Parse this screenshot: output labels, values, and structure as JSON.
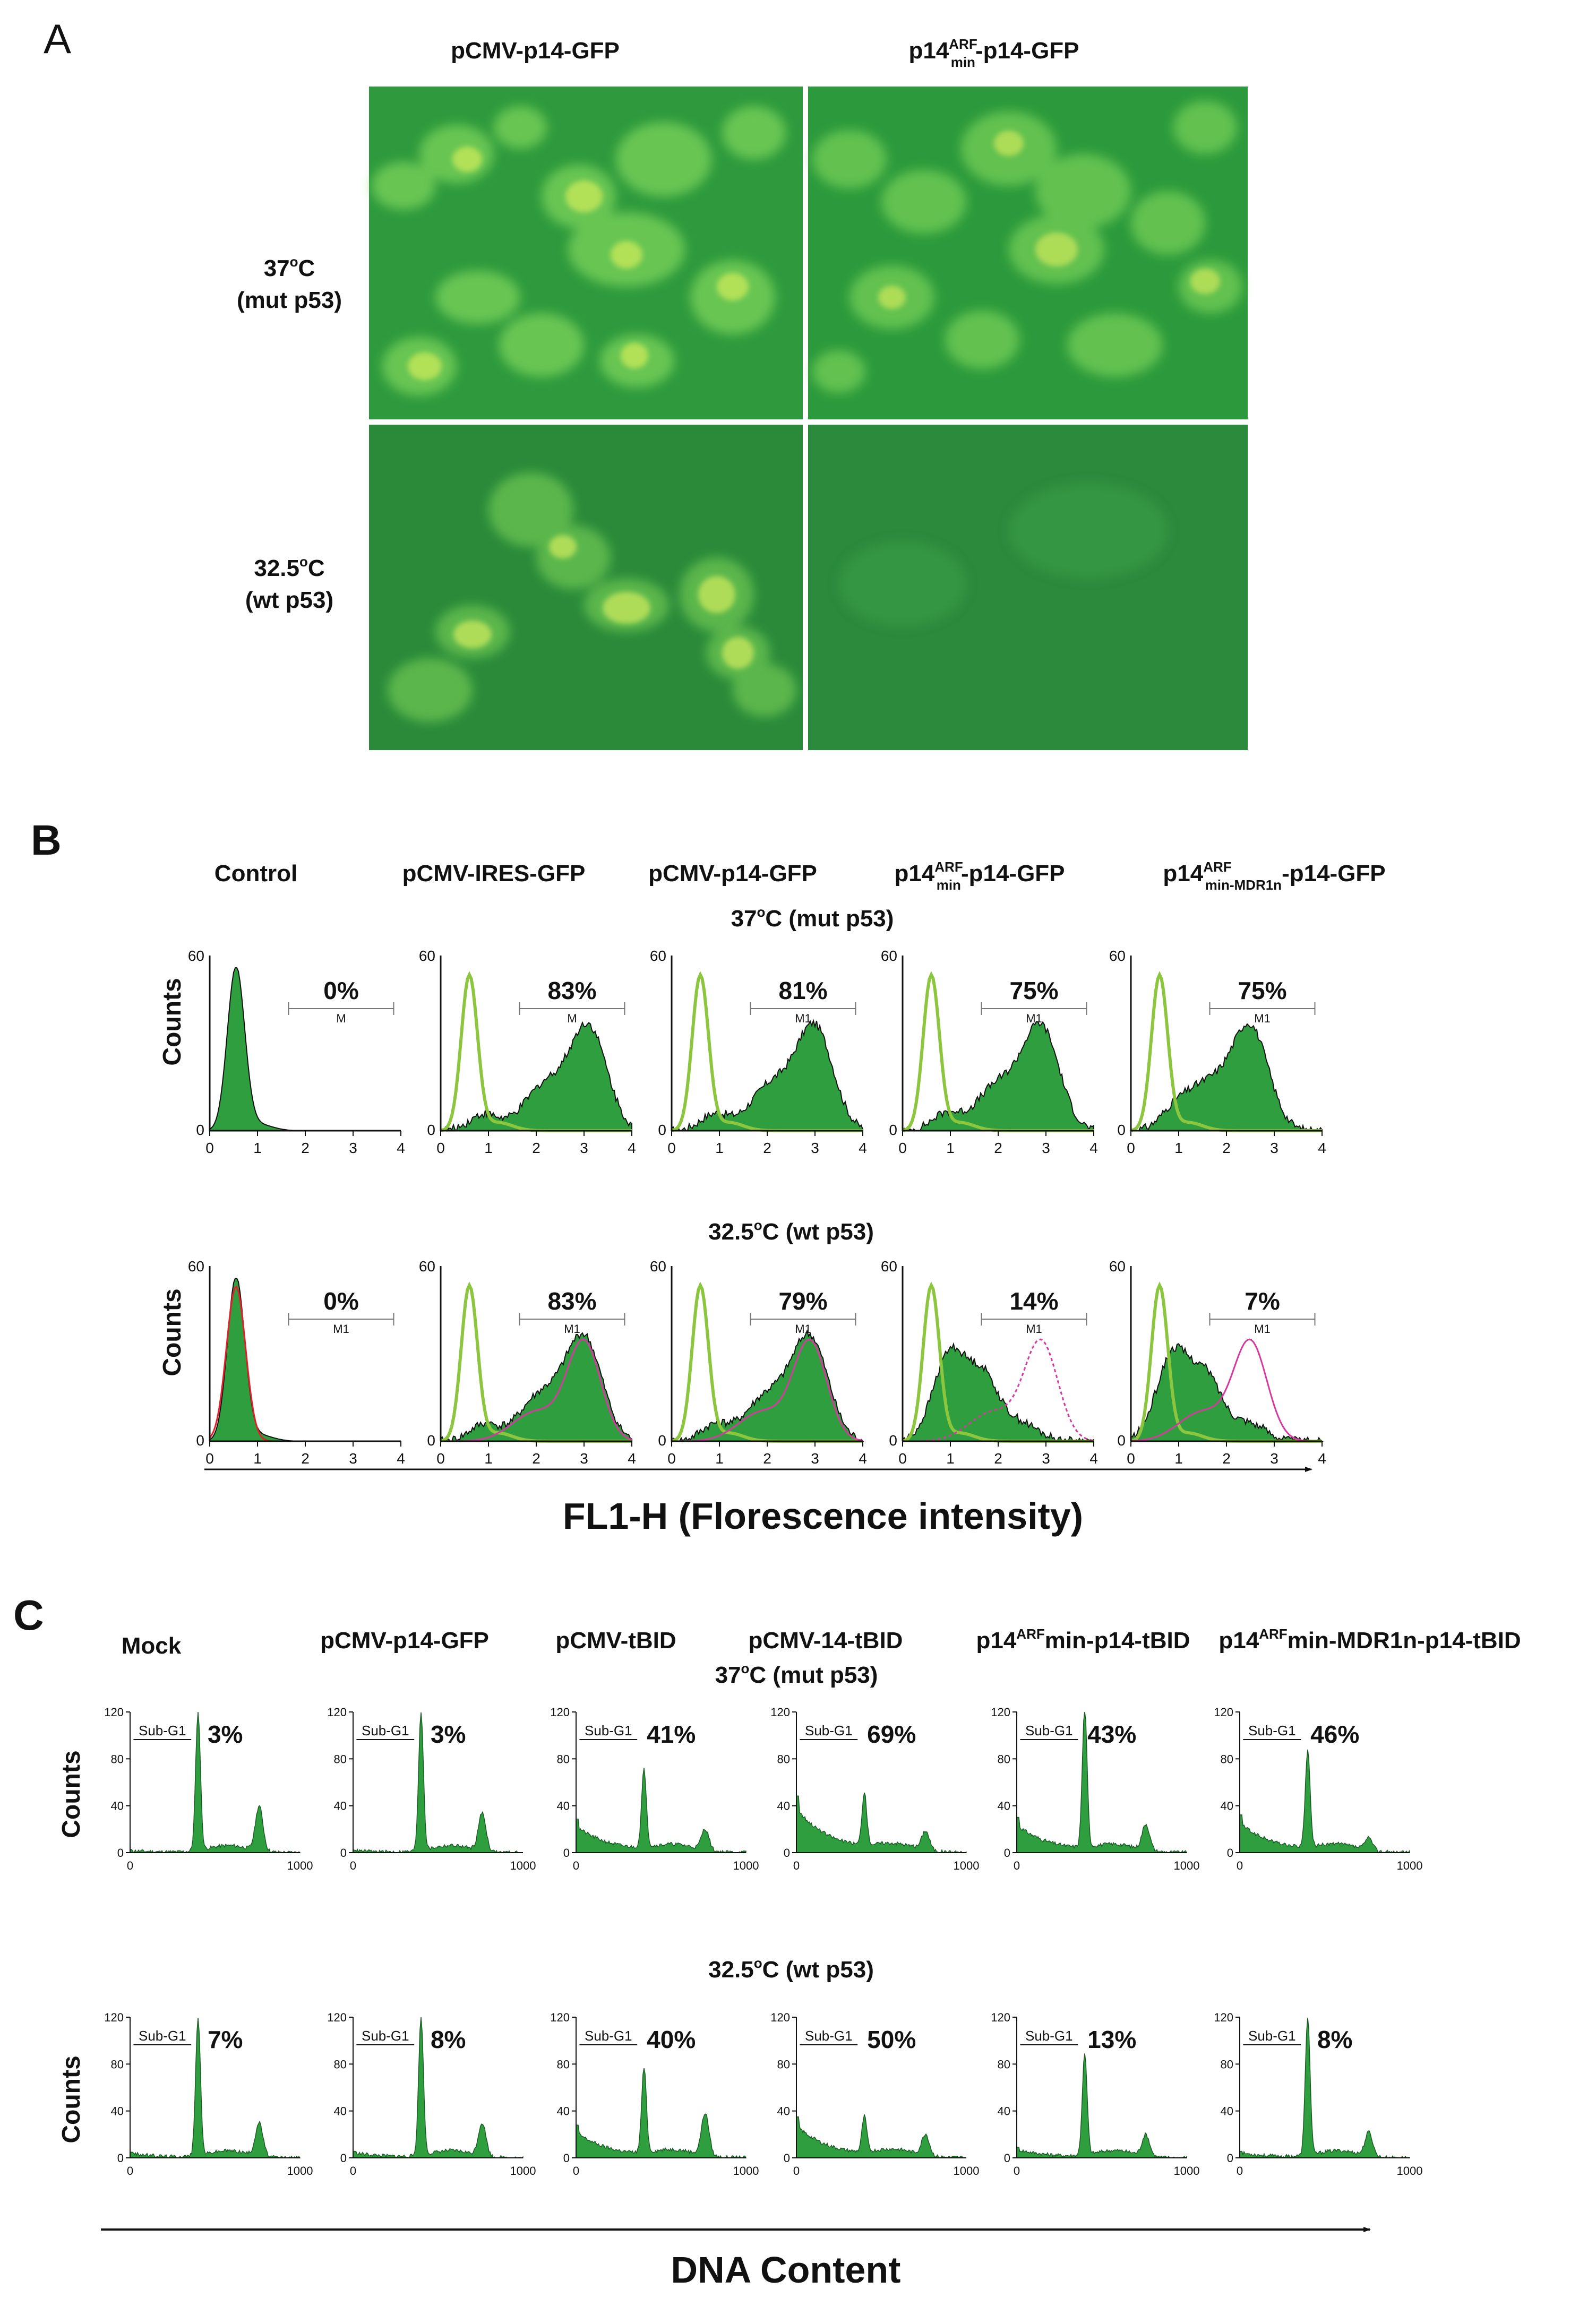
{
  "panel_a": {
    "letter": "A",
    "columns": [
      {
        "base": "pCMV-p14-GFP",
        "sup": "",
        "sub": "",
        "rest": ""
      },
      {
        "base": "p14",
        "sup": "ARF",
        "sub": "min",
        "rest": "-p14-GFP"
      }
    ],
    "rows": [
      {
        "line1_pre": "37",
        "line1_sup": "o",
        "line1_post": "C",
        "line2": "(mut p53)"
      },
      {
        "line1_pre": "32.5",
        "line1_sup": "o",
        "line1_post": "C",
        "line2": "(wt p53)"
      }
    ],
    "image_descriptions": [
      "",
      "",
      "",
      ""
    ]
  },
  "panel_b": {
    "letter": "B",
    "headers": [
      {
        "base": "Control",
        "sup": "",
        "sub": "",
        "rest": ""
      },
      {
        "base": "pCMV-IRES-GFP",
        "sup": "",
        "sub": "",
        "rest": ""
      },
      {
        "base": "pCMV-p14-GFP",
        "sup": "",
        "sub": "",
        "rest": ""
      },
      {
        "base": "p14",
        "sup": "ARF",
        "sub": "min",
        "rest": "-p14-GFP"
      },
      {
        "base": "p14",
        "sup": "ARF",
        "sub": "min-MDR1n",
        "rest": "-p14-GFP"
      }
    ],
    "condition_labels": [
      {
        "pre": "37",
        "sup": "o",
        "post": "C (mut p53)"
      },
      {
        "pre": "32.5",
        "sup": "o",
        "post": "C (wt p53)"
      }
    ],
    "ylabel": "Counts",
    "xlabel": "FL1-H (Florescence intensity)",
    "y_ticks": [
      "0",
      "60"
    ],
    "x_ticks": [
      "0",
      "1",
      "2",
      "3",
      "4"
    ]
  },
  "panel_c": {
    "letter": "C",
    "headers": [
      {
        "base": "Mock",
        "sup": "",
        "rest": ""
      },
      {
        "base": "pCMV-p14-GFP",
        "sup": "",
        "rest": ""
      },
      {
        "base": "pCMV-tBID",
        "sup": "",
        "rest": ""
      },
      {
        "base": "pCMV-14-tBID",
        "sup": "",
        "rest": ""
      },
      {
        "base": "p14",
        "sup": "ARF",
        "rest": "min-p14-tBID"
      },
      {
        "base": "p14",
        "sup": "ARF",
        "rest": "min-MDR1n-p14-tBID"
      }
    ],
    "condition_labels": [
      {
        "pre": "37",
        "sup": "o",
        "post": "C (mut p53)"
      },
      {
        "pre": "32.5",
        "sup": "o",
        "post": "C (wt p53)"
      }
    ],
    "ylabel": "Counts",
    "xlabel": "DNA Content",
    "gate_label": "Sub-G1",
    "y_ticks": [
      "0",
      "40",
      "80",
      "120"
    ],
    "x_ticks": [
      "0",
      "1000"
    ]
  },
  "chart_data": [
    {
      "type": "area",
      "panel": "B",
      "x_label": "FL1-H (Florescence intensity)",
      "y_label": "Counts",
      "xlim": [
        0,
        4
      ],
      "ylim": [
        0,
        60
      ],
      "rows": [
        {
          "condition": "37°C (mut p53)",
          "gate": "M1",
          "plots": [
            {
              "header": "Control",
              "percent": "0%",
              "gate_label": "M",
              "profile": "control",
              "overlay": "none"
            },
            {
              "header": "pCMV-IRES-GFP",
              "percent": "83%",
              "gate_label": "M",
              "profile": "high",
              "peak_x": 3.1,
              "overlay": "none"
            },
            {
              "header": "pCMV-p14-GFP",
              "percent": "81%",
              "gate_label": "M1",
              "profile": "high",
              "peak_x": 3.0,
              "overlay": "none"
            },
            {
              "header": "p14ARFmin-p14-GFP",
              "percent": "75%",
              "gate_label": "M1",
              "profile": "high",
              "peak_x": 2.9,
              "overlay": "none"
            },
            {
              "header": "p14ARFmin-MDR1n-p14-GFP",
              "percent": "75%",
              "gate_label": "M1",
              "profile": "high",
              "peak_x": 2.5,
              "overlay": "none"
            }
          ]
        },
        {
          "condition": "32.5°C (wt p53)",
          "gate": "M1",
          "plots": [
            {
              "header": "Control",
              "percent": "0%",
              "gate_label": "M1",
              "profile": "control",
              "overlay": "red"
            },
            {
              "header": "pCMV-IRES-GFP",
              "percent": "83%",
              "gate_label": "M1",
              "profile": "high",
              "peak_x": 3.0,
              "overlay": "pink"
            },
            {
              "header": "pCMV-p14-GFP",
              "percent": "79%",
              "gate_label": "M1",
              "profile": "high",
              "peak_x": 2.9,
              "overlay": "pink"
            },
            {
              "header": "p14ARFmin-p14-GFP",
              "percent": "14%",
              "gate_label": "M1",
              "profile": "low",
              "peak_x": 1.0,
              "overlay": "pink-dotted",
              "overlay_peak_x": 2.9
            },
            {
              "header": "p14ARFmin-MDR1n-p14-GFP",
              "percent": "7%",
              "gate_label": "M1",
              "profile": "low",
              "peak_x": 0.9,
              "overlay": "pink",
              "overlay_peak_x": 2.5
            }
          ]
        }
      ]
    },
    {
      "type": "area",
      "panel": "C",
      "x_label": "DNA Content",
      "y_label": "Counts",
      "xlim": [
        0,
        1000
      ],
      "ylim": [
        0,
        120
      ],
      "rows": [
        {
          "condition": "37°C (mut p53)",
          "sub_g1_percent": [
            {
              "header": "Mock",
              "percent": "3%",
              "g1_height": 118,
              "g2_height": 38
            },
            {
              "header": "pCMV-p14-GFP",
              "percent": "3%",
              "g1_height": 118,
              "g2_height": 32
            },
            {
              "header": "pCMV-tBID",
              "percent": "41%",
              "g1_height": 66,
              "g2_height": 18
            },
            {
              "header": "pCMV-14-tBID",
              "percent": "69%",
              "g1_height": 44,
              "g2_height": 16
            },
            {
              "header": "p14ARFmin-p14-tBID",
              "percent": "43%",
              "g1_height": 118,
              "g2_height": 22
            },
            {
              "header": "p14ARFmin-MDR1n-p14-tBID",
              "percent": "46%",
              "g1_height": 82,
              "g2_height": 10
            }
          ]
        },
        {
          "condition": "32.5°C (wt p53)",
          "sub_g1_percent": [
            {
              "header": "Mock",
              "percent": "7%",
              "g1_height": 118,
              "g2_height": 28
            },
            {
              "header": "pCMV-p14-GFP",
              "percent": "8%",
              "g1_height": 118,
              "g2_height": 28
            },
            {
              "header": "pCMV-tBID",
              "percent": "40%",
              "g1_height": 72,
              "g2_height": 36
            },
            {
              "header": "pCMV-14-tBID",
              "percent": "50%",
              "g1_height": 30,
              "g2_height": 18
            },
            {
              "header": "p14ARFmin-p14-tBID",
              "percent": "13%",
              "g1_height": 86,
              "g2_height": 18
            },
            {
              "header": "p14ARFmin-MDR1n-p14-tBID",
              "percent": "8%",
              "g1_height": 118,
              "g2_height": 20
            }
          ]
        }
      ]
    }
  ]
}
